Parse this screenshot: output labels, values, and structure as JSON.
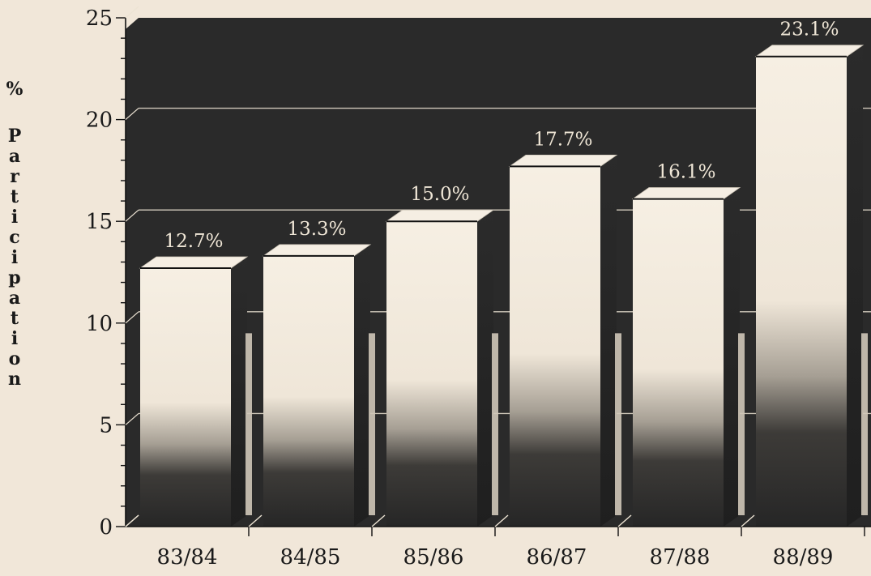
{
  "chart_data": {
    "type": "bar",
    "categories": [
      "83/84",
      "84/85",
      "85/86",
      "86/87",
      "87/88",
      "88/89"
    ],
    "values": [
      12.7,
      13.3,
      15.0,
      17.7,
      16.1,
      23.1
    ],
    "data_labels": [
      "12.7%",
      "13.3%",
      "15.0%",
      "17.7%",
      "16.1%",
      "23.1%"
    ],
    "title": "",
    "xlabel": "",
    "ylabel": "% Participation",
    "ylim": [
      0,
      25
    ],
    "yticks": [
      0,
      5,
      10,
      15,
      20,
      25
    ],
    "grid": true,
    "three_d": true
  },
  "colors": {
    "page_background": "#f1e7d9",
    "panel_background": "#2a2a2a",
    "bar_light": "#f4ecdf",
    "bar_dark": "#2b2b2b",
    "data_label": "#efe6d6",
    "gridline": "#ede4d4",
    "axis_text": "#1a1a1a"
  }
}
